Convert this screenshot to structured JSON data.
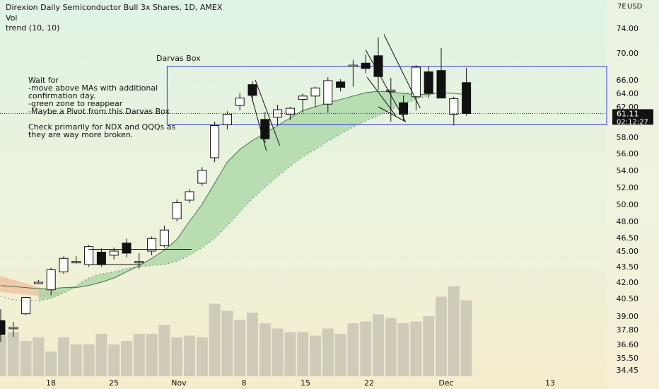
{
  "header": {
    "title": "Direxion Daily Semiconductor Bull 3x Shares, 1D, AMEX",
    "vol_label": "Vol",
    "trend_label": "trend (10, 10)"
  },
  "annotations": {
    "darvas_label": "Darvas Box",
    "notes": [
      "Wait for",
      "-move above MAs with additional",
      "confirmation day.",
      "-green zone to reappear",
      "-Maybe a Pivot from this Darvas Box",
      "",
      "Check primarily for NDX and QQQs as",
      "they are way more broken."
    ]
  },
  "chart_data": {
    "type": "candlestick",
    "currency": "USD",
    "axis_top_label": "7E",
    "y_ticks": [
      "74.00",
      "70.00",
      "66.00",
      "64.00",
      "62.00",
      "60.00",
      "58.00",
      "56.00",
      "54.00",
      "52.00",
      "50.00",
      "48.00",
      "46.50",
      "45.00",
      "43.50",
      "42.00",
      "40.50",
      "39.00",
      "37.80",
      "36.60",
      "35.50",
      "34.45"
    ],
    "x_ticks": [
      "18",
      "25",
      "Nov",
      "8",
      "15",
      "22",
      "Dec",
      "13"
    ],
    "last_price": "61.11",
    "countdown": "02:12:27",
    "darvas_box": {
      "top": 68.0,
      "bottom": 59.6
    },
    "candles": [
      {
        "date": "Oct 12",
        "o": 38.6,
        "h": 39.6,
        "l": 36.8,
        "c": 37.4,
        "v": 23
      },
      {
        "date": "Oct 13",
        "o": 38.0,
        "h": 38.5,
        "l": 37.2,
        "c": 38.0,
        "v": 25
      },
      {
        "date": "Oct 14",
        "o": 39.2,
        "h": 40.6,
        "l": 39.1,
        "c": 40.6,
        "v": 20
      },
      {
        "date": "Oct 15",
        "o": 42.0,
        "h": 42.2,
        "l": 41.8,
        "c": 42.0,
        "v": 22
      },
      {
        "date": "Oct 18",
        "o": 41.3,
        "h": 43.4,
        "l": 40.8,
        "c": 43.2,
        "v": 14
      },
      {
        "date": "Oct 19",
        "o": 43.0,
        "h": 44.5,
        "l": 42.8,
        "c": 44.3,
        "v": 22
      },
      {
        "date": "Oct 20",
        "o": 44.0,
        "h": 44.5,
        "l": 43.8,
        "c": 44.0,
        "v": 18
      },
      {
        "date": "Oct 21",
        "o": 43.7,
        "h": 45.7,
        "l": 43.5,
        "c": 45.5,
        "v": 18
      },
      {
        "date": "Oct 22",
        "o": 44.9,
        "h": 45.3,
        "l": 43.5,
        "c": 43.7,
        "v": 24
      },
      {
        "date": "Oct 25",
        "o": 44.6,
        "h": 45.4,
        "l": 44.2,
        "c": 45.0,
        "v": 18
      },
      {
        "date": "Oct 26",
        "o": 45.9,
        "h": 46.4,
        "l": 44.4,
        "c": 44.8,
        "v": 20
      },
      {
        "date": "Oct 27",
        "o": 44.0,
        "h": 44.8,
        "l": 43.3,
        "c": 44.0,
        "v": 24
      },
      {
        "date": "Oct 28",
        "o": 45.0,
        "h": 46.6,
        "l": 44.6,
        "c": 46.4,
        "v": 24
      },
      {
        "date": "Oct 29",
        "o": 45.6,
        "h": 47.6,
        "l": 45.4,
        "c": 47.2,
        "v": 29
      },
      {
        "date": "Nov 01",
        "o": 48.3,
        "h": 50.6,
        "l": 48.0,
        "c": 50.2,
        "v": 22
      },
      {
        "date": "Nov 02",
        "o": 50.5,
        "h": 51.8,
        "l": 50.2,
        "c": 51.5,
        "v": 23
      },
      {
        "date": "Nov 03",
        "o": 52.5,
        "h": 54.4,
        "l": 52.2,
        "c": 54.0,
        "v": 22
      },
      {
        "date": "Nov 04",
        "o": 55.5,
        "h": 60.0,
        "l": 55.0,
        "c": 59.5,
        "v": 41
      },
      {
        "date": "Nov 05",
        "o": 59.6,
        "h": 61.4,
        "l": 59.0,
        "c": 61.0,
        "v": 37
      },
      {
        "date": "Nov 08",
        "o": 62.2,
        "h": 64.0,
        "l": 61.5,
        "c": 63.3,
        "v": 32
      },
      {
        "date": "Nov 09",
        "o": 65.3,
        "h": 65.8,
        "l": 62.8,
        "c": 63.7,
        "v": 36
      },
      {
        "date": "Nov 10",
        "o": 60.3,
        "h": 61.3,
        "l": 57.3,
        "c": 57.8,
        "v": 30
      },
      {
        "date": "Nov 11",
        "o": 60.6,
        "h": 62.3,
        "l": 59.5,
        "c": 61.6,
        "v": 27
      },
      {
        "date": "Nov 12",
        "o": 61.0,
        "h": 62.0,
        "l": 60.2,
        "c": 61.8,
        "v": 25
      },
      {
        "date": "Nov 15",
        "o": 63.1,
        "h": 64.0,
        "l": 61.3,
        "c": 63.6,
        "v": 25
      },
      {
        "date": "Nov 16",
        "o": 63.6,
        "h": 65.0,
        "l": 62.0,
        "c": 64.8,
        "v": 23
      },
      {
        "date": "Nov 17",
        "o": 62.4,
        "h": 66.4,
        "l": 61.2,
        "c": 65.9,
        "v": 27
      },
      {
        "date": "Nov 18",
        "o": 65.7,
        "h": 66.1,
        "l": 64.3,
        "c": 64.9,
        "v": 24
      },
      {
        "date": "Nov 19",
        "o": 68.2,
        "h": 69.0,
        "l": 65.0,
        "c": 68.2,
        "v": 30
      },
      {
        "date": "Nov 22",
        "o": 68.5,
        "h": 69.8,
        "l": 67.0,
        "c": 67.7,
        "v": 31
      },
      {
        "date": "Nov 23",
        "o": 69.6,
        "h": 72.5,
        "l": 64.5,
        "c": 66.5,
        "v": 35
      },
      {
        "date": "Nov 24",
        "o": 64.5,
        "h": 66.3,
        "l": 60.0,
        "c": 64.5,
        "v": 33
      },
      {
        "date": "Nov 26",
        "o": 62.6,
        "h": 63.7,
        "l": 60.2,
        "c": 61.0,
        "v": 30
      },
      {
        "date": "Nov 29",
        "o": 63.5,
        "h": 68.2,
        "l": 61.5,
        "c": 67.9,
        "v": 31
      },
      {
        "date": "Nov 30",
        "o": 67.2,
        "h": 68.0,
        "l": 63.3,
        "c": 64.0,
        "v": 34
      },
      {
        "date": "Dec 01",
        "o": 67.4,
        "h": 70.8,
        "l": 63.3,
        "c": 63.3,
        "v": 45
      },
      {
        "date": "Dec 02",
        "o": 61.0,
        "h": 63.5,
        "l": 59.5,
        "c": 63.2,
        "v": 51
      },
      {
        "date": "Dec 03",
        "o": 65.6,
        "h": 67.8,
        "l": 60.8,
        "c": 61.1,
        "v": 43
      }
    ],
    "trend_fast": [
      41.7,
      41.6,
      41.5,
      41.4,
      41.4,
      41.5,
      41.5,
      41.7,
      42.0,
      42.4,
      43.0,
      43.6,
      44.3,
      45.1,
      46.3,
      48.0,
      50.0,
      52.5,
      55.0,
      56.5,
      57.6,
      58.5,
      59.5,
      60.5,
      61.5,
      62.0,
      62.6,
      63.1,
      63.6,
      64.1,
      64.3,
      64.2,
      64.0,
      63.8,
      63.9,
      64.1,
      64.0,
      63.8
    ],
    "trend_slow": [
      40.7,
      40.4,
      40.3,
      40.3,
      40.5,
      41.0,
      41.7,
      42.4,
      42.8,
      43.0,
      43.3,
      43.5,
      43.6,
      43.7,
      44.0,
      44.6,
      45.4,
      46.4,
      47.6,
      49.1,
      50.7,
      52.0,
      53.3,
      54.5,
      55.6,
      56.5,
      57.5,
      58.4,
      59.3,
      60.1,
      60.8,
      61.6,
      62.4,
      63.1,
      63.7,
      64.1,
      64.0,
      63.8
    ]
  }
}
